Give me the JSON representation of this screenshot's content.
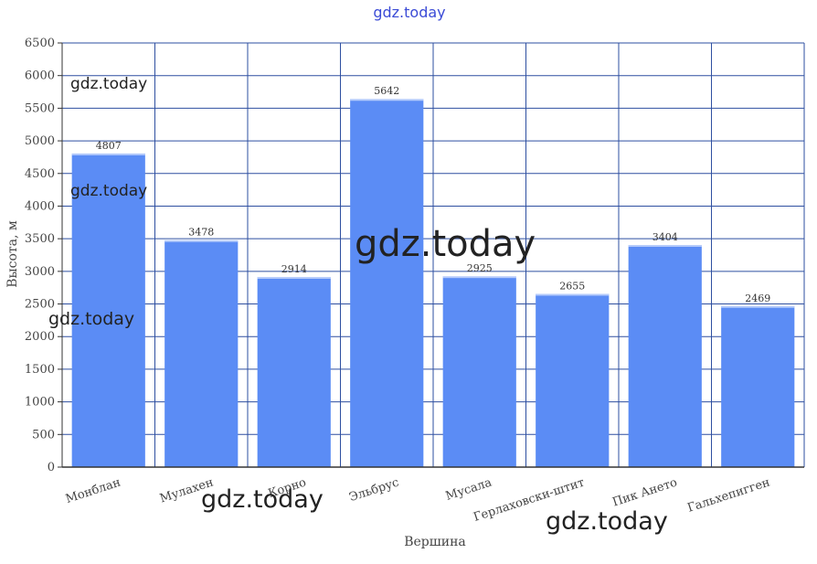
{
  "watermarks": {
    "top": "gdz.today",
    "text": "gdz.today"
  },
  "chart_data": {
    "type": "bar",
    "title": "",
    "xlabel": "Вершина",
    "ylabel": "Высота, м",
    "categories": [
      "Монблан",
      "Мулахен",
      "Корно",
      "Эльбрус",
      "Мусала",
      "Герлаховски-штит",
      "Пик Ането",
      "Гальхепигген"
    ],
    "values": [
      4807,
      3478,
      2914,
      5642,
      2925,
      2655,
      3404,
      2469
    ],
    "ylim": [
      0,
      6500
    ],
    "yticks": [
      0,
      500,
      1000,
      1500,
      2000,
      2500,
      3000,
      3500,
      4000,
      4500,
      5000,
      5500,
      6000,
      6500
    ],
    "grid": true,
    "legend": "none",
    "bar_color": "#5b8cf5",
    "grid_color": "#2e4fa0",
    "axis_color": "#333333"
  }
}
